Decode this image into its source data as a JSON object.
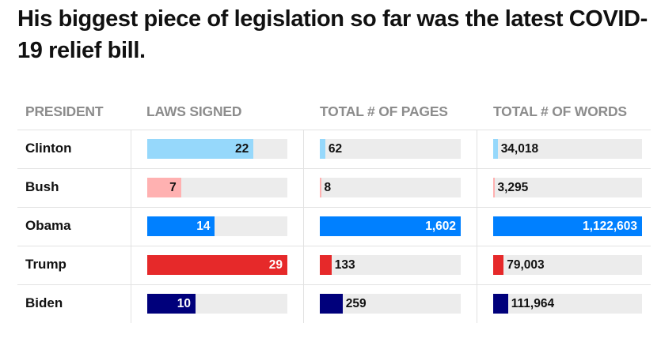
{
  "title": "His biggest piece of legislation so far was the latest COVID-19 relief bill.",
  "chart_data": {
    "type": "table",
    "title": "His biggest piece of legislation so far was the latest COVID-19 relief bill.",
    "columns": [
      "PRESIDENT",
      "LAWS SIGNED",
      "TOTAL # OF PAGES",
      "TOTAL # OF WORDS"
    ],
    "rows": [
      {
        "president": "Clinton",
        "color": "#96d8fb",
        "laws_signed": 22,
        "pages": 62,
        "words": 34018,
        "laws_label": "22",
        "pages_label": "62",
        "words_label": "34,018"
      },
      {
        "president": "Bush",
        "color": "#ffb1b1",
        "laws_signed": 7,
        "pages": 8,
        "words": 3295,
        "laws_label": "7",
        "pages_label": "8",
        "words_label": "3,295"
      },
      {
        "president": "Obama",
        "color": "#0080ff",
        "laws_signed": 14,
        "pages": 1602,
        "words": 1122603,
        "laws_label": "14",
        "pages_label": "1,602",
        "words_label": "1,122,603"
      },
      {
        "president": "Trump",
        "color": "#e6292a",
        "laws_signed": 29,
        "pages": 133,
        "words": 79003,
        "laws_label": "29",
        "pages_label": "133",
        "words_label": "79,003"
      },
      {
        "president": "Biden",
        "color": "#00007b",
        "laws_signed": 10,
        "pages": 259,
        "words": 111964,
        "laws_label": "10",
        "pages_label": "259",
        "words_label": "111,964"
      }
    ],
    "column_max": {
      "laws_signed": 29,
      "pages": 1602,
      "words": 1122603
    },
    "track_color": "#ececec"
  }
}
